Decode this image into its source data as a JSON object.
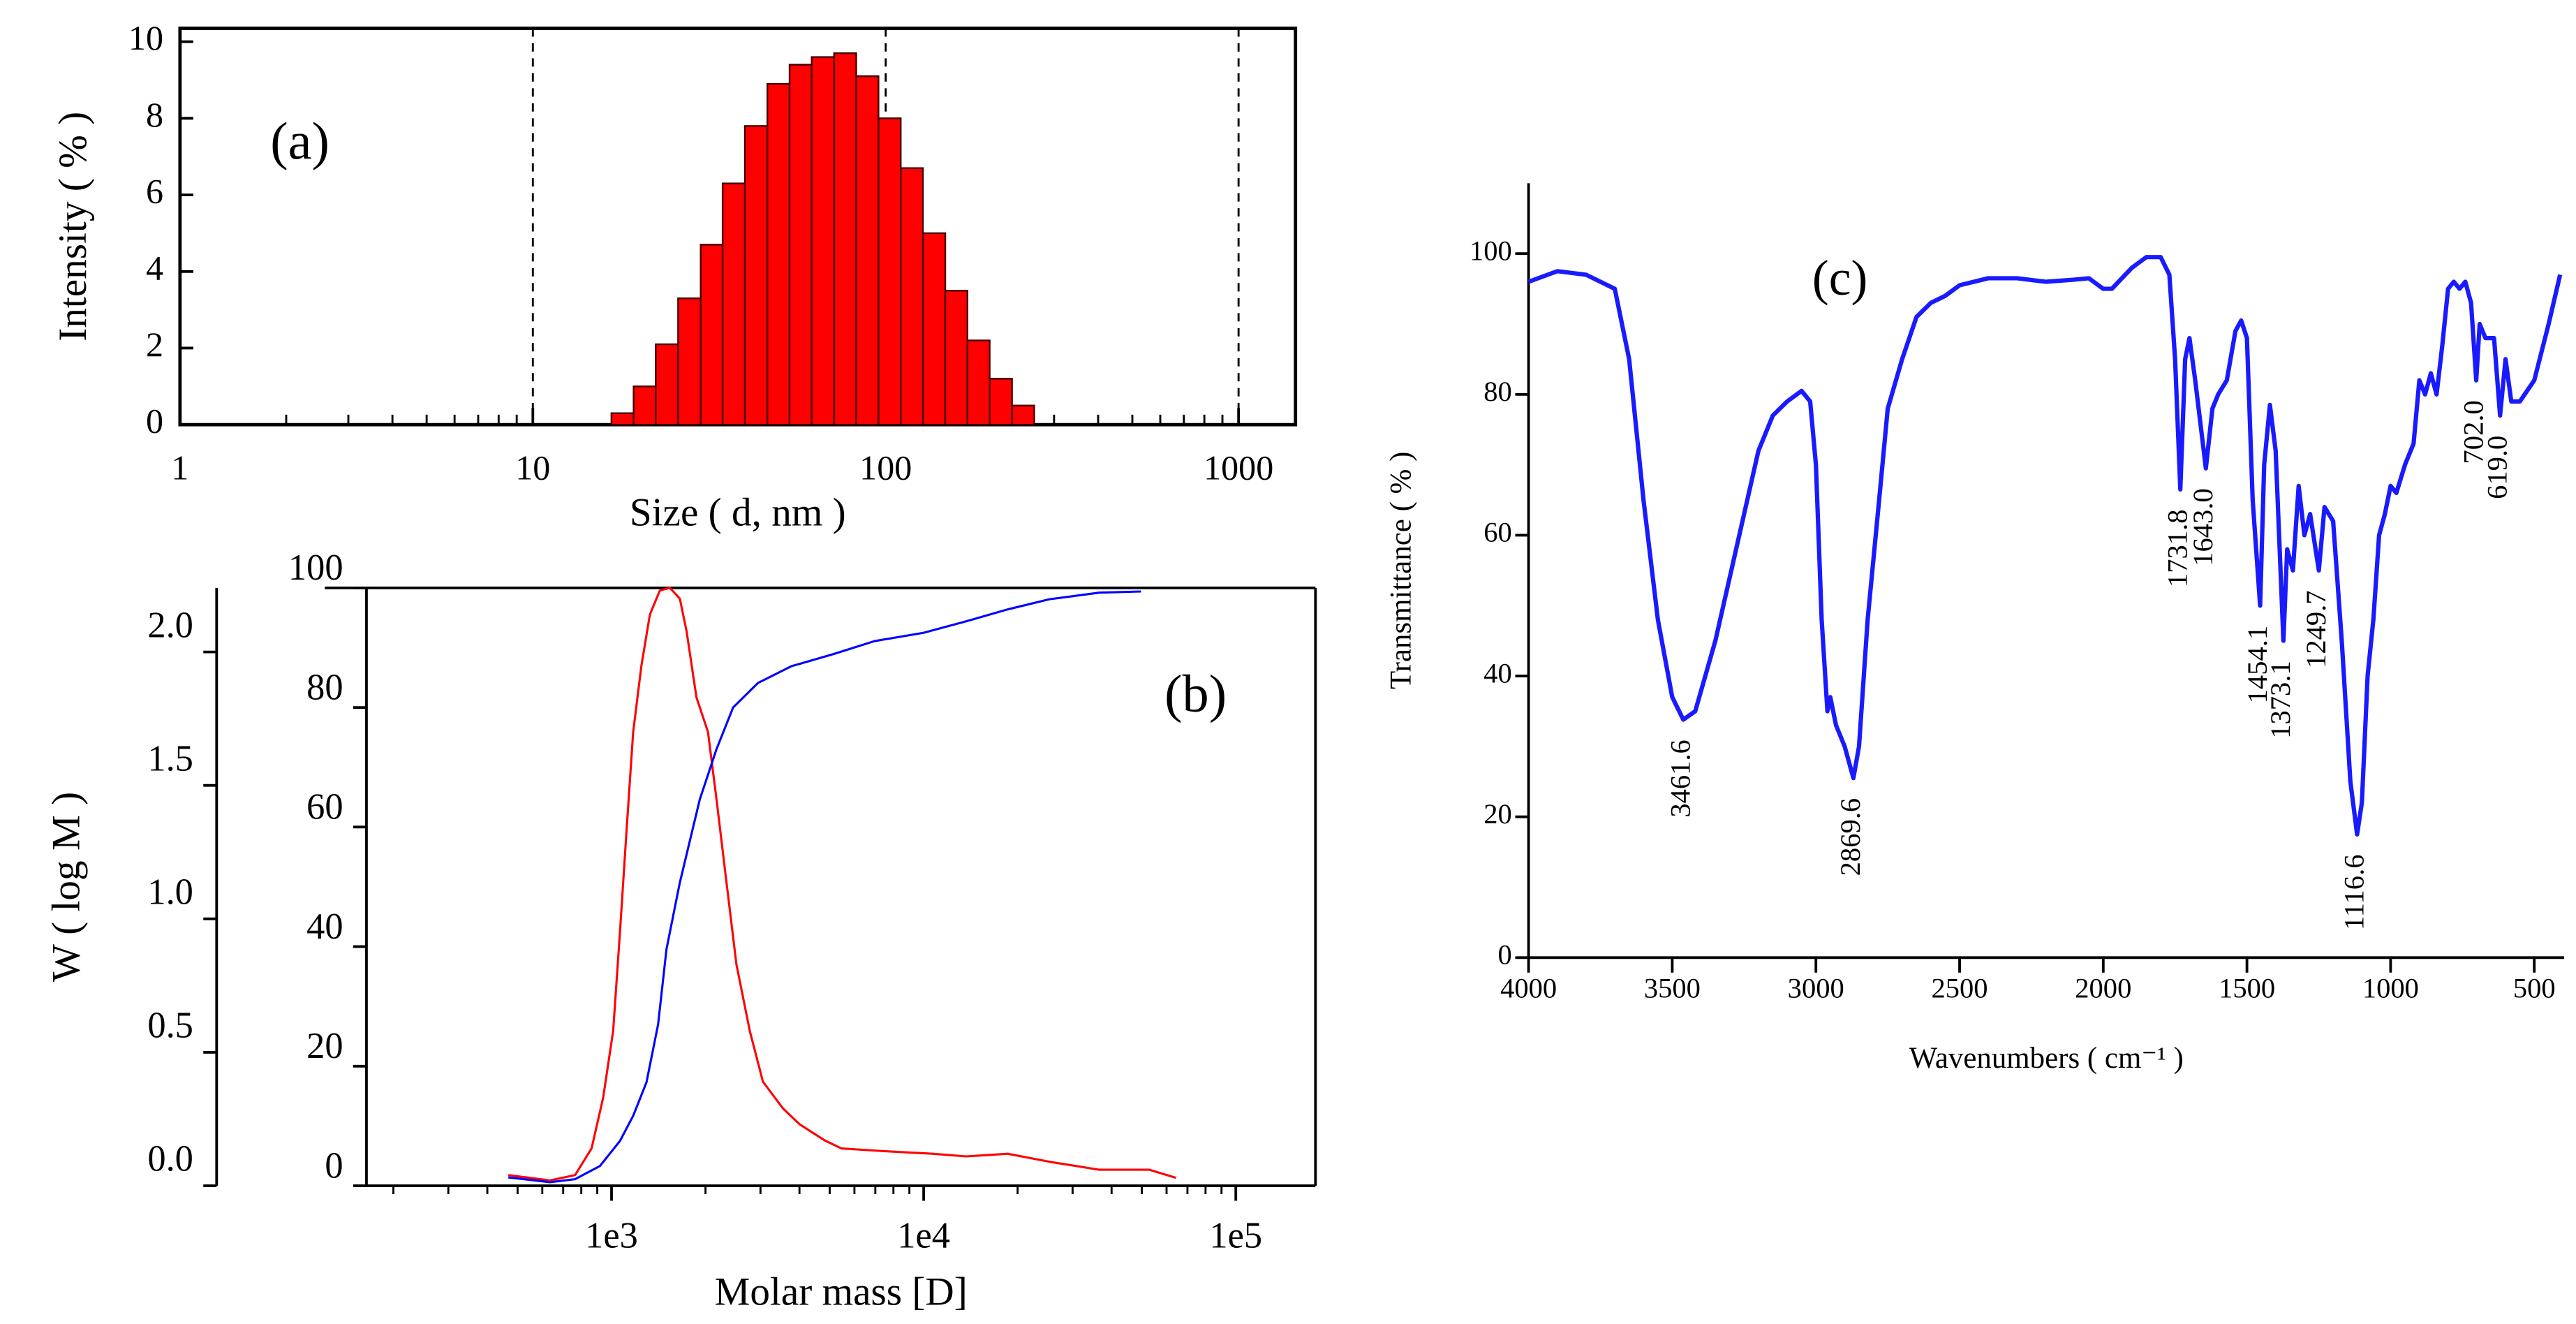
{
  "chart_data": [
    {
      "type": "histogram",
      "annotation": "(a)",
      "xlabel": "Size ( d, nm )",
      "ylabel": "Intensity ( % )",
      "xscale": "log",
      "bins": [
        16.7,
        19.3,
        22.3,
        25.8,
        29.9,
        34.5,
        39.9,
        46.2,
        53.4,
        61.7,
        71.4,
        82.5,
        95.4,
        110.3,
        127.5,
        147.5,
        170.5,
        197.1,
        228,
        263.6
      ],
      "values": [
        0.3,
        1.0,
        2.1,
        3.3,
        4.7,
        6.3,
        7.8,
        8.9,
        9.4,
        9.6,
        9.7,
        9.1,
        8.0,
        6.7,
        5.0,
        3.5,
        2.2,
        1.2,
        0.5
      ],
      "color": "#ff0000",
      "xlim": [
        1,
        1450
      ],
      "xticks": [
        1,
        10,
        100,
        1000
      ],
      "ylim": [
        0,
        10.35
      ],
      "yticks": [
        0,
        2,
        4,
        6,
        8,
        10
      ],
      "vlines": [
        10,
        100,
        1000
      ]
    },
    {
      "type": "line",
      "annotation": "(b)",
      "xlabel": "Molar mass [D]",
      "ylabel": "W ( log M )",
      "xscale": "log",
      "series": [
        {
          "color": "#ff0000",
          "axis": "y",
          "x": [
            467,
            635,
            764,
            863,
            940,
            1012,
            1064,
            1117,
            1173,
            1247,
            1327,
            1428,
            1537,
            1655,
            1738,
            1871,
            2037,
            2168,
            2333,
            2512,
            2773,
            3055,
            3540,
            4009,
            4819,
            5445,
            7396,
            10690,
            13670,
            18580,
            25290,
            36540,
            52840,
            64270
          ],
          "values": [
            0.04,
            0.02,
            0.04,
            0.14,
            0.33,
            0.58,
            0.95,
            1.33,
            1.7,
            1.95,
            2.14,
            2.23,
            2.24,
            2.2,
            2.08,
            1.83,
            1.7,
            1.45,
            1.14,
            0.83,
            0.58,
            0.39,
            0.29,
            0.23,
            0.17,
            0.14,
            0.13,
            0.12,
            0.11,
            0.12,
            0.09,
            0.06,
            0.06,
            0.03
          ]
        },
        {
          "color": "#0000ff",
          "axis": "y2",
          "x": [
            467,
            635,
            764,
            918,
            1064,
            1173,
            1294,
            1410,
            1500,
            1655,
            1917,
            2168,
            2452,
            2946,
            3770,
            5121,
            6963,
            10000,
            13670,
            18580,
            25290,
            36540,
            49700
          ],
          "values": [
            1.4,
            0.6,
            1.1,
            3.3,
            7.5,
            11.7,
            17.3,
            27.0,
            39.6,
            50.7,
            64.6,
            73.0,
            80.0,
            84.1,
            86.9,
            88.9,
            91.1,
            92.5,
            94.4,
            96.4,
            98.1,
            99.2,
            99.4
          ]
        }
      ],
      "xlim": [
        164,
        180000
      ],
      "xticks": [
        {
          "value": 1000,
          "label": "1e3"
        },
        {
          "value": 10000,
          "label": "1e4"
        },
        {
          "value": 100000,
          "label": "1e5"
        }
      ],
      "ylim": [
        0,
        2.24
      ],
      "yticks": [
        {
          "value": 0,
          "label": "0.0"
        },
        0.5,
        {
          "value": 1,
          "label": "1.0"
        },
        1.5,
        {
          "value": 2,
          "label": "2.0"
        }
      ],
      "y2lim": [
        0,
        100
      ],
      "y2ticks": [
        0,
        20,
        40,
        60,
        80,
        100
      ]
    },
    {
      "type": "line",
      "annotation": "(c)",
      "xlabel": "Wavenumbers ( cm⁻¹ )",
      "ylabel": "Transmittance ( % )",
      "x": [
        4000,
        3900,
        3800,
        3700,
        3650,
        3600,
        3550,
        3500,
        3461.6,
        3420,
        3350,
        3300,
        3250,
        3200,
        3150,
        3100,
        3050,
        3020,
        3000,
        2980,
        2960,
        2950,
        2930,
        2900,
        2869.6,
        2850,
        2820,
        2780,
        2750,
        2700,
        2650,
        2600,
        2550,
        2500,
        2400,
        2300,
        2200,
        2100,
        2050,
        2000,
        1970,
        1900,
        1850,
        1800,
        1770,
        1750,
        1731.8,
        1715,
        1700,
        1680,
        1643.0,
        1620,
        1600,
        1570,
        1540,
        1520,
        1500,
        1480,
        1454.1,
        1440,
        1420,
        1400,
        1373.1,
        1360,
        1340,
        1320,
        1300,
        1280,
        1249.7,
        1230,
        1200,
        1170,
        1140,
        1116.6,
        1100,
        1080,
        1060,
        1040,
        1020,
        1000,
        980,
        950,
        920,
        900,
        880,
        860,
        840,
        820,
        800,
        780,
        760,
        740,
        720,
        702.0,
        690,
        670,
        640,
        619.0,
        600,
        580,
        550,
        500,
        450,
        410
      ],
      "series": [
        {
          "color": "#1a1aff",
          "values": [
            96,
            97.5,
            97,
            95,
            85,
            65,
            48,
            37,
            33.8,
            35,
            45,
            54,
            63,
            72,
            77,
            79,
            80.5,
            79,
            70,
            48,
            35,
            37,
            33,
            30,
            25.5,
            30,
            48,
            65,
            78,
            85,
            91,
            93,
            94,
            95.5,
            96.5,
            96.5,
            96,
            96.3,
            96.5,
            95,
            95,
            98,
            99.5,
            99.5,
            97,
            85,
            66.5,
            85,
            88,
            82,
            69.5,
            78,
            80,
            82,
            89,
            90.5,
            88,
            65,
            50,
            70,
            78.5,
            72,
            45,
            58,
            55,
            67,
            60,
            63,
            55,
            64,
            62,
            45,
            25,
            17.5,
            22,
            40,
            48,
            60,
            63,
            67,
            66,
            70,
            73,
            82,
            80,
            83,
            80,
            87,
            95,
            96,
            95,
            96,
            93,
            82,
            90,
            88,
            88,
            77,
            85,
            79,
            79,
            82,
            90,
            97
          ]
        }
      ],
      "xlim": [
        4000,
        396
      ],
      "xticks": [
        4000,
        3500,
        3000,
        2500,
        2000,
        1500,
        1000,
        500
      ],
      "ylim": [
        0,
        110
      ],
      "yticks": [
        0,
        20,
        40,
        60,
        80,
        100
      ],
      "annotations": [
        "3461.6",
        "2869.6",
        "1731.8",
        "1643.0",
        "1454.1",
        "1373.1",
        "1249.7",
        "1116.6",
        "702.0",
        "619.0"
      ]
    }
  ]
}
